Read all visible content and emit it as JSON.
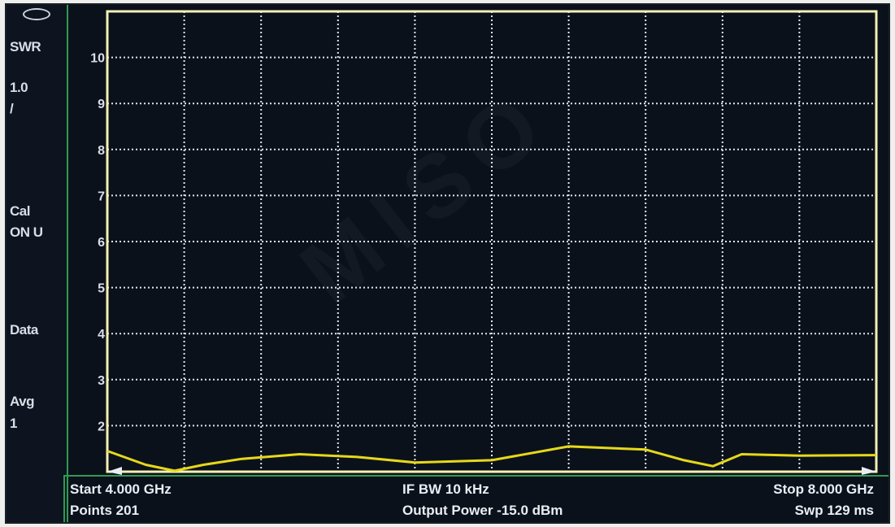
{
  "left_panel": {
    "items": [
      {
        "label": "SWR"
      },
      {
        "label": "1.0"
      },
      {
        "label": "/"
      },
      {
        "label": "Cal"
      },
      {
        "label": "ON U"
      },
      {
        "label": "Data"
      },
      {
        "label": "Avg"
      },
      {
        "label": "1"
      }
    ]
  },
  "footer": {
    "start": "Start 4.000 GHz",
    "points": "Points 201",
    "ifbw": "IF BW 10 kHz",
    "output_power": "Output Power -15.0 dBm",
    "stop": "Stop 8.000 GHz",
    "sweep": "Swp 129 ms"
  },
  "colors": {
    "trace": "#e6d81a",
    "grid": "#dfe3ea",
    "frame": "#f3f0b3",
    "panel_border": "#2f9a52"
  },
  "chart_data": {
    "type": "line",
    "title": "",
    "xlabel": "",
    "ylabel": "",
    "x_range": [
      4.0,
      8.0
    ],
    "ylim": [
      1,
      11
    ],
    "y_ticks": [
      2,
      3,
      4,
      5,
      6,
      7,
      8,
      9,
      10
    ],
    "grid": true,
    "series": [
      {
        "x": [
          4.0,
          4.2,
          4.35,
          4.5,
          4.7,
          5.0,
          5.3,
          5.6,
          6.0,
          6.4,
          6.8,
          7.0,
          7.15,
          7.3,
          7.6,
          8.0
        ],
        "values": [
          1.45,
          1.15,
          1.02,
          1.15,
          1.28,
          1.38,
          1.32,
          1.2,
          1.25,
          1.55,
          1.48,
          1.25,
          1.12,
          1.38,
          1.35,
          1.36
        ]
      }
    ]
  }
}
